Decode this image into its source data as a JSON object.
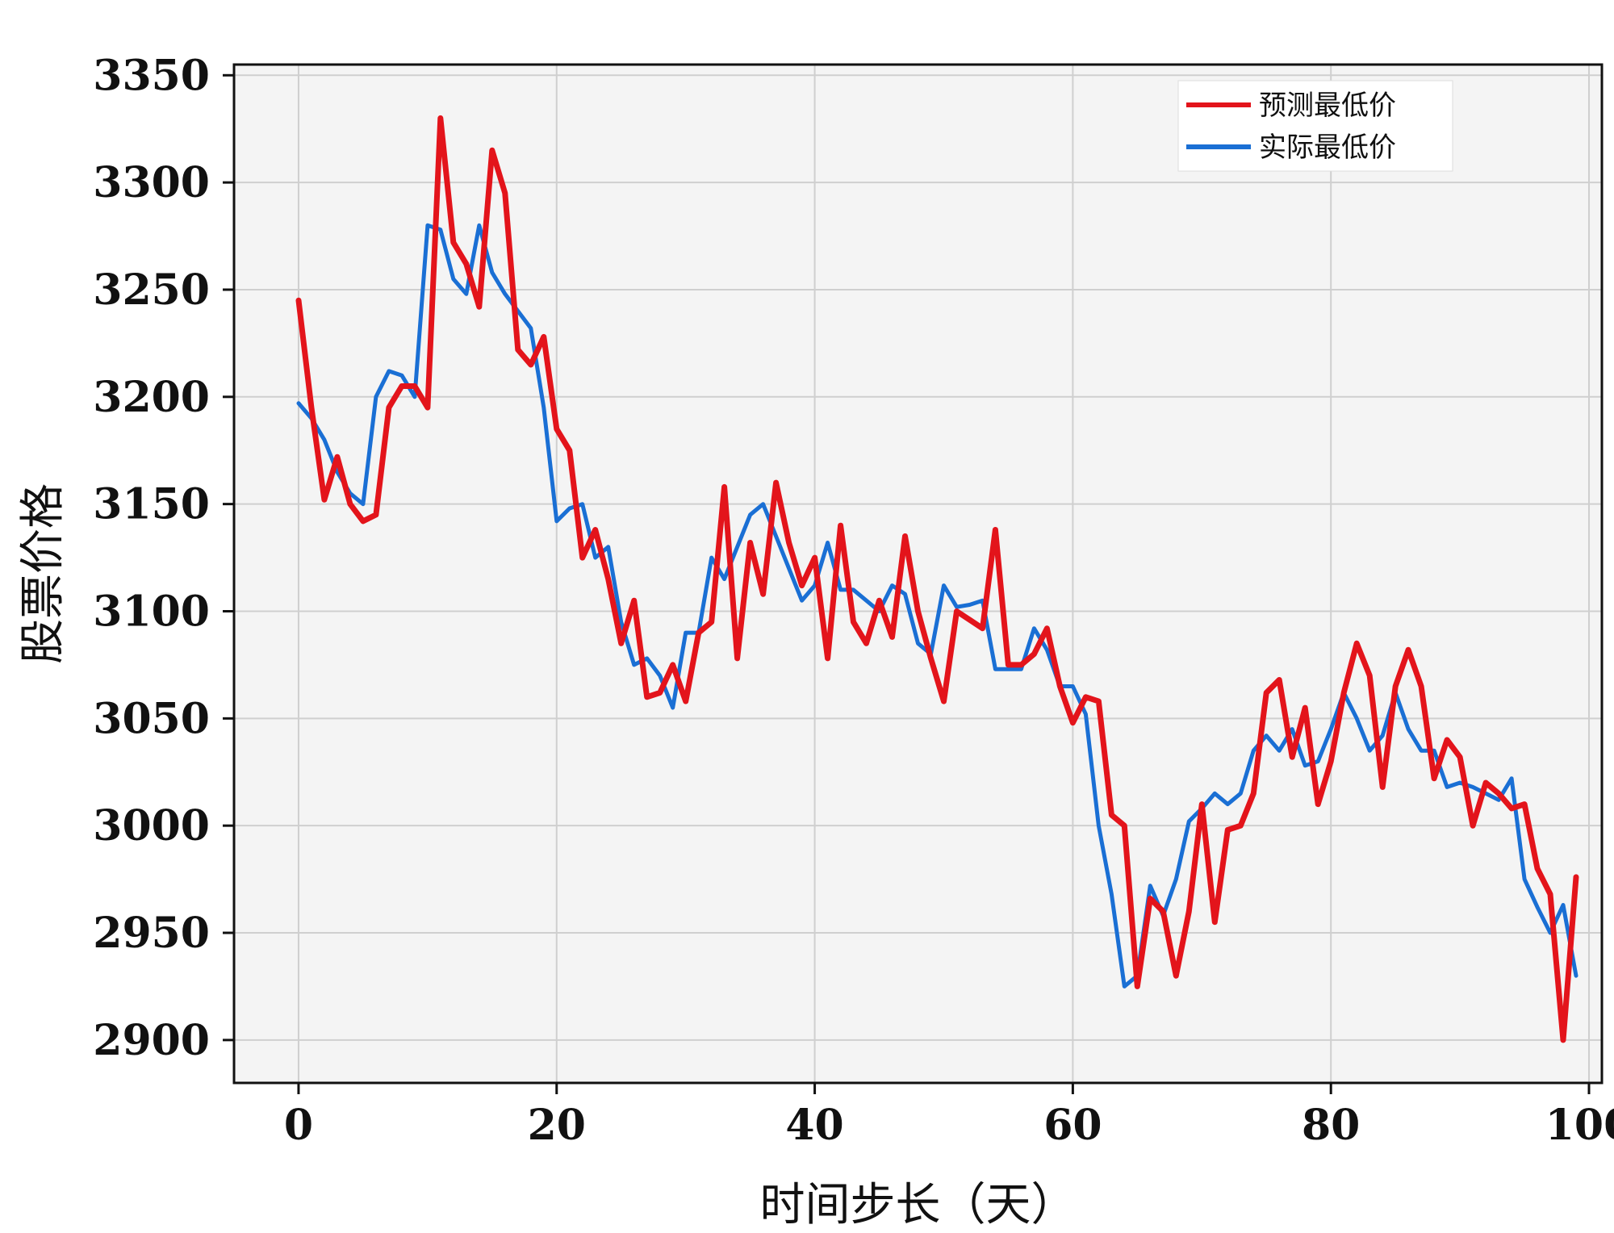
{
  "chart_data": {
    "type": "line",
    "title": "",
    "xlabel": "时间步长（天）",
    "ylabel": "股票价格",
    "xlim": [
      -5,
      101
    ],
    "ylim": [
      2880,
      3355
    ],
    "x_ticks": [
      0,
      20,
      40,
      60,
      80,
      100
    ],
    "y_ticks": [
      2900,
      2950,
      3000,
      3050,
      3100,
      3150,
      3200,
      3250,
      3300,
      3350
    ],
    "grid": true,
    "legend_position": "top-right",
    "series": [
      {
        "name": "预测最低价",
        "color": "#e3141b",
        "x": [
          0,
          1,
          2,
          3,
          4,
          5,
          6,
          7,
          8,
          9,
          10,
          11,
          12,
          13,
          14,
          15,
          16,
          17,
          18,
          19,
          20,
          21,
          22,
          23,
          24,
          25,
          26,
          27,
          28,
          29,
          30,
          31,
          32,
          33,
          34,
          35,
          36,
          37,
          38,
          39,
          40,
          41,
          42,
          43,
          44,
          45,
          46,
          47,
          48,
          49,
          50,
          51,
          52,
          53,
          54,
          55,
          56,
          57,
          58,
          59,
          60,
          61,
          62,
          63,
          64,
          65,
          66,
          67,
          68,
          69,
          70,
          71,
          72,
          73,
          74,
          75,
          76,
          77,
          78,
          79,
          80,
          81,
          82,
          83,
          84,
          85,
          86,
          87,
          88,
          89,
          90,
          91,
          92,
          93,
          94,
          95,
          96,
          97,
          98,
          99
        ],
        "values": [
          3245,
          3195,
          3152,
          3172,
          3150,
          3142,
          3145,
          3195,
          3205,
          3205,
          3195,
          3330,
          3272,
          3262,
          3242,
          3315,
          3295,
          3222,
          3215,
          3228,
          3185,
          3175,
          3125,
          3138,
          3115,
          3085,
          3105,
          3060,
          3062,
          3075,
          3058,
          3090,
          3095,
          3158,
          3078,
          3132,
          3108,
          3160,
          3132,
          3112,
          3125,
          3078,
          3140,
          3095,
          3085,
          3105,
          3088,
          3135,
          3100,
          3078,
          3058,
          3100,
          3096,
          3092,
          3138,
          3075,
          3075,
          3080,
          3092,
          3065,
          3048,
          3060,
          3058,
          3005,
          3000,
          2925,
          2966,
          2960,
          2930,
          2960,
          3010,
          2955,
          2998,
          3000,
          3015,
          3062,
          3068,
          3032,
          3055,
          3010,
          3030,
          3062,
          3085,
          3070,
          3018,
          3065,
          3082,
          3065,
          3022,
          3040,
          3032,
          3000,
          3020,
          3015,
          3008,
          3010,
          2980,
          2968,
          2900,
          2976
        ]
      },
      {
        "name": "实际最低价",
        "color": "#1a6fd4",
        "x": [
          0,
          1,
          2,
          3,
          4,
          5,
          6,
          7,
          8,
          9,
          10,
          11,
          12,
          13,
          14,
          15,
          16,
          17,
          18,
          19,
          20,
          21,
          22,
          23,
          24,
          25,
          26,
          27,
          28,
          29,
          30,
          31,
          32,
          33,
          34,
          35,
          36,
          37,
          38,
          39,
          40,
          41,
          42,
          43,
          44,
          45,
          46,
          47,
          48,
          49,
          50,
          51,
          52,
          53,
          54,
          55,
          56,
          57,
          58,
          59,
          60,
          61,
          62,
          63,
          64,
          65,
          66,
          67,
          68,
          69,
          70,
          71,
          72,
          73,
          74,
          75,
          76,
          77,
          78,
          79,
          80,
          81,
          82,
          83,
          84,
          85,
          86,
          87,
          88,
          89,
          90,
          91,
          92,
          93,
          94,
          95,
          96,
          97,
          98,
          99
        ],
        "values": [
          3197,
          3190,
          3180,
          3165,
          3155,
          3150,
          3200,
          3212,
          3210,
          3200,
          3280,
          3278,
          3255,
          3248,
          3280,
          3258,
          3248,
          3240,
          3232,
          3195,
          3142,
          3148,
          3150,
          3125,
          3130,
          3095,
          3075,
          3078,
          3070,
          3055,
          3090,
          3090,
          3125,
          3115,
          3130,
          3145,
          3150,
          3135,
          3120,
          3105,
          3112,
          3132,
          3110,
          3110,
          3105,
          3100,
          3112,
          3108,
          3085,
          3080,
          3112,
          3102,
          3103,
          3105,
          3073,
          3073,
          3073,
          3092,
          3082,
          3065,
          3065,
          3052,
          3000,
          2968,
          2925,
          2930,
          2972,
          2958,
          2975,
          3002,
          3008,
          3015,
          3010,
          3015,
          3035,
          3042,
          3035,
          3045,
          3028,
          3030,
          3045,
          3062,
          3050,
          3035,
          3042,
          3062,
          3045,
          3035,
          3035,
          3018,
          3020,
          3018,
          3015,
          3012,
          3022,
          2975,
          2962,
          2950,
          2963,
          2930
        ]
      }
    ]
  }
}
